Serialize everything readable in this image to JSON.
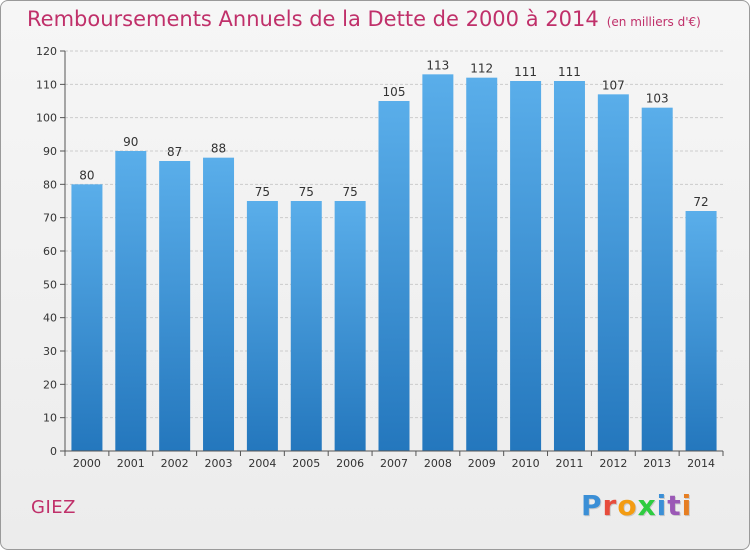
{
  "header": {
    "title": "Remboursements Annuels de la Dette de 2000 à 2014",
    "unit_note": "(en milliers d'€)"
  },
  "footer": {
    "commune": "GIEZ",
    "logo_letters": [
      "P",
      "r",
      "o",
      "x",
      "i",
      "t",
      "i"
    ],
    "logo_colors": [
      "#3b8fd6",
      "#e74c3c",
      "#f39c12",
      "#2ecc40",
      "#3b8fd6",
      "#9b59b6",
      "#e67e22"
    ]
  },
  "colors": {
    "bar_top": "#5aaeea",
    "bar_bottom": "#2477bd",
    "grid": "#cccccc",
    "axis": "#555555",
    "title": "#c0306a"
  },
  "chart_data": {
    "type": "bar",
    "title": "Remboursements Annuels de la Dette de 2000 à 2014",
    "subtitle": "(en milliers d'€)",
    "xlabel": "",
    "ylabel": "",
    "categories": [
      "2000",
      "2001",
      "2002",
      "2003",
      "2004",
      "2005",
      "2006",
      "2007",
      "2008",
      "2009",
      "2010",
      "2011",
      "2012",
      "2013",
      "2014"
    ],
    "values": [
      80,
      90,
      87,
      88,
      75,
      75,
      75,
      105,
      113,
      112,
      111,
      111,
      107,
      103,
      72
    ],
    "ylim": [
      0,
      120
    ],
    "yticks": [
      0,
      10,
      20,
      30,
      40,
      50,
      60,
      70,
      80,
      90,
      100,
      110,
      120
    ],
    "grid": true,
    "data_labels": true
  }
}
